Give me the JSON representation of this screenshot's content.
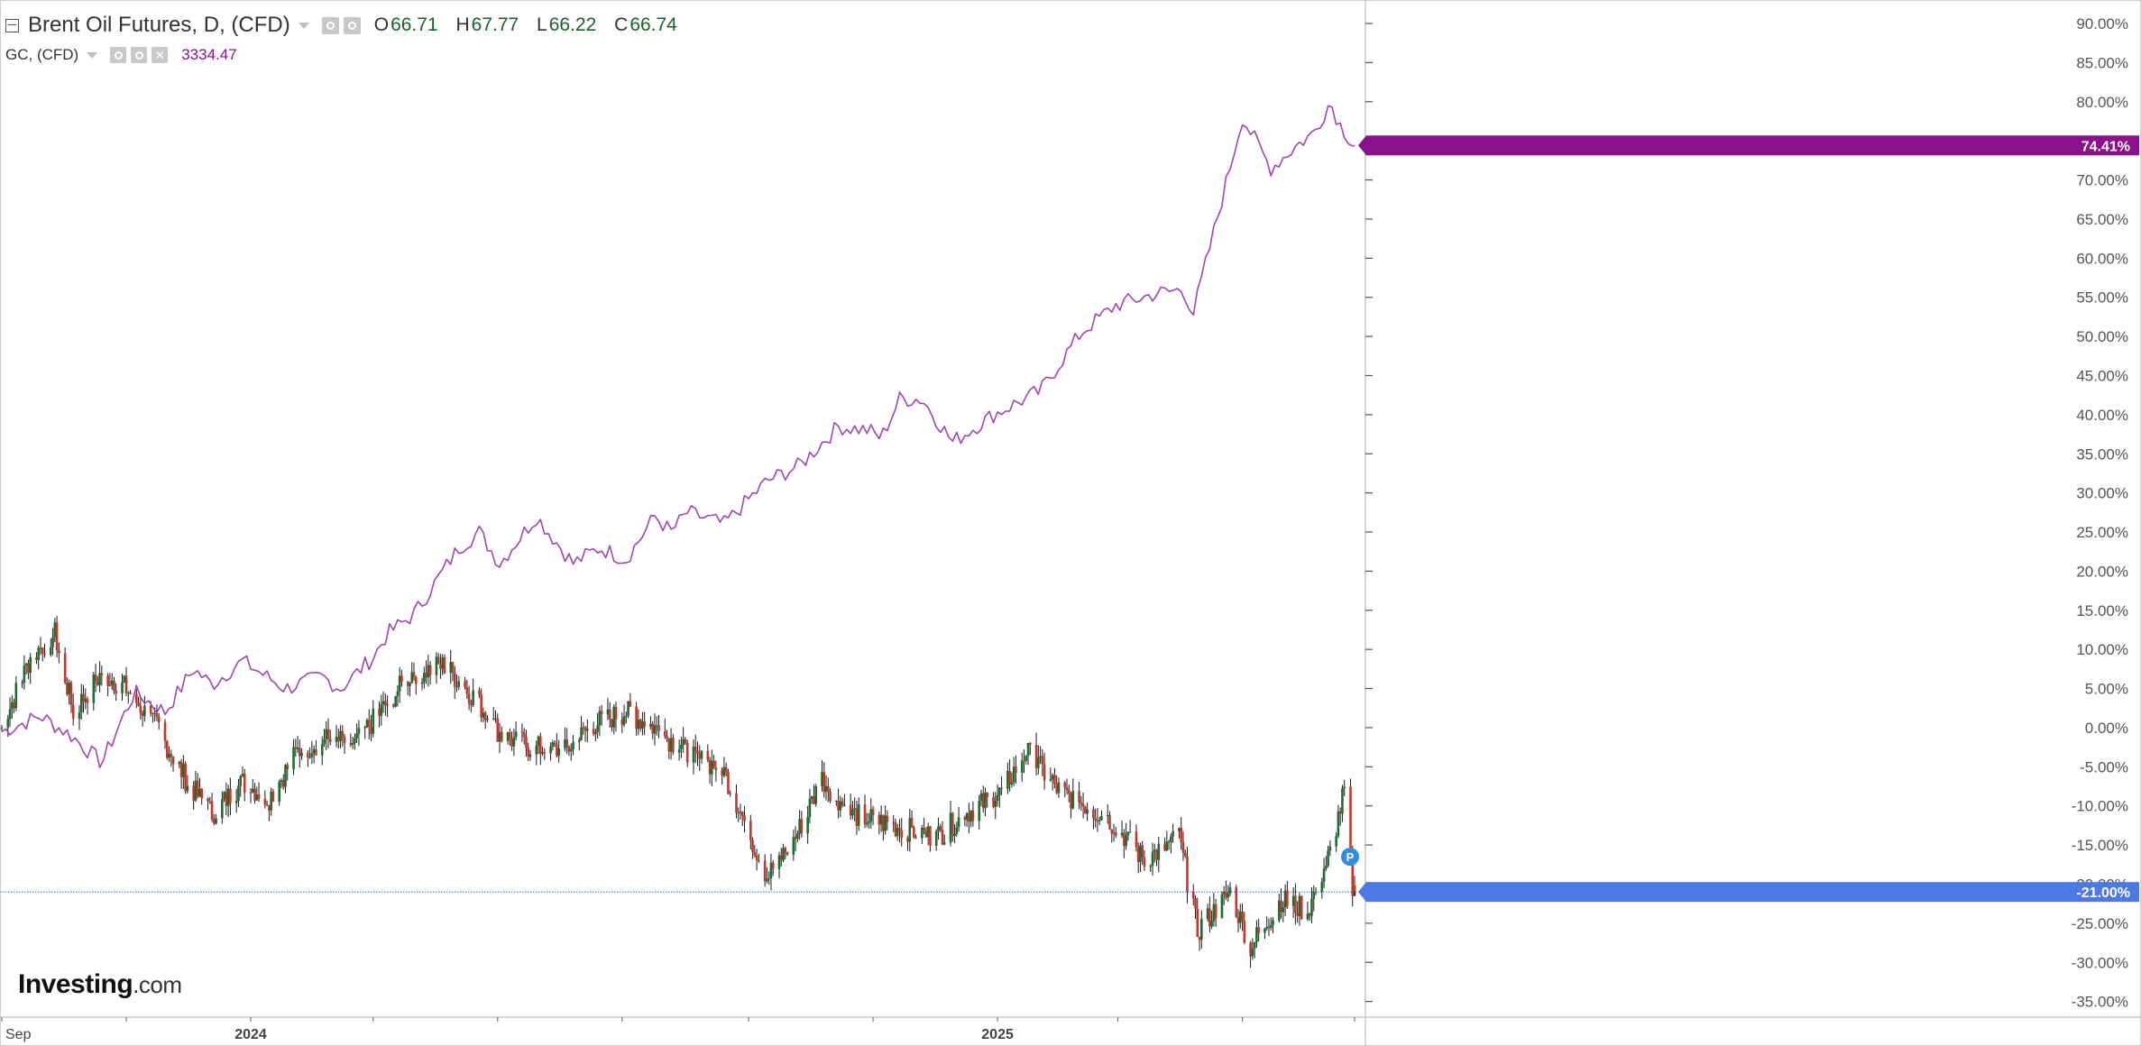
{
  "legend": {
    "main_title": "Brent Oil Futures, D, (CFD)",
    "ohlc": [
      {
        "key": "O",
        "value": "66.71"
      },
      {
        "key": "H",
        "value": "67.77"
      },
      {
        "key": "L",
        "value": "66.22"
      },
      {
        "key": "C",
        "value": "66.74"
      }
    ],
    "compare_title": "GC, (CFD)",
    "compare_value": "3334.47"
  },
  "logo": {
    "name": "Investing",
    "suffix": ".com"
  },
  "colors": {
    "gold_line": "#9e47b0",
    "gold_badge": "#8b108b",
    "up_candle": "#1f6b30",
    "down_candle": "#c0392b",
    "current_line": "#6c8fe8",
    "current_badge": "#4d79e6",
    "alert_marker": "#2f8de4"
  },
  "chart_data": {
    "type": "line",
    "y_axis": {
      "ylim": [
        -37,
        93
      ],
      "unit": "%",
      "tick_values": [
        90,
        85,
        80,
        75,
        70,
        65,
        60,
        55,
        50,
        45,
        40,
        35,
        30,
        25,
        20,
        15,
        10,
        5,
        0,
        -5,
        -10,
        -15,
        -20,
        -25,
        -30,
        -35
      ],
      "tick_labels": [
        "90.00%",
        "85.00%",
        "80.00%",
        "75.00%",
        "70.00%",
        "65.00%",
        "60.00%",
        "55.00%",
        "50.00%",
        "45.00%",
        "40.00%",
        "35.00%",
        "30.00%",
        "25.00%",
        "20.00%",
        "15.00%",
        "10.00%",
        "5.00%",
        "0.00%",
        "-5.00%",
        "-10.00%",
        "-15.00%",
        "-20.00%",
        "-25.00%",
        "-30.00%",
        "-35.00%"
      ]
    },
    "x_axis": {
      "xlim": [
        "2023-09-01",
        "2025-06-25"
      ],
      "labels": [
        {
          "date": "2023-09-01",
          "text": "Sep"
        },
        {
          "date": "2024-01-01",
          "text": "2024"
        },
        {
          "date": "2025-01-01",
          "text": "2025"
        }
      ],
      "ticks": [
        "2023-09-01",
        "2023-11-01",
        "2024-01-01",
        "2024-03-01",
        "2024-05-01",
        "2024-07-01",
        "2024-09-01",
        "2024-11-01",
        "2025-01-01",
        "2025-03-01",
        "2025-05-01",
        "2025-06-25"
      ]
    },
    "series": [
      {
        "name": "GC, (CFD)",
        "style": "line",
        "x": [
          "2023-09-01",
          "2023-09-20",
          "2023-10-05",
          "2023-10-20",
          "2023-11-05",
          "2023-11-20",
          "2023-12-04",
          "2023-12-13",
          "2023-12-28",
          "2024-01-18",
          "2024-02-05",
          "2024-02-14",
          "2024-03-01",
          "2024-03-08",
          "2024-03-21",
          "2024-04-12",
          "2024-04-22",
          "2024-05-02",
          "2024-05-20",
          "2024-06-07",
          "2024-06-20",
          "2024-07-03",
          "2024-07-17",
          "2024-07-25",
          "2024-08-02",
          "2024-08-20",
          "2024-09-10",
          "2024-09-26",
          "2024-10-15",
          "2024-10-30",
          "2024-11-05",
          "2024-11-14",
          "2024-11-25",
          "2024-12-10",
          "2024-12-30",
          "2025-01-22",
          "2025-02-11",
          "2025-02-28",
          "2025-03-20",
          "2025-04-02",
          "2025-04-07",
          "2025-04-21",
          "2025-05-01",
          "2025-05-15",
          "2025-05-28",
          "2025-06-05",
          "2025-06-13",
          "2025-06-18",
          "2025-06-25"
        ],
        "values": [
          -0.5,
          1.5,
          -1.0,
          -4.5,
          4.5,
          2.0,
          7.5,
          5.5,
          8.5,
          5.0,
          6.5,
          5.0,
          9.0,
          12.0,
          14.5,
          23.0,
          25.0,
          21.0,
          27.0,
          21.0,
          23.0,
          21.5,
          27.0,
          25.0,
          27.5,
          26.0,
          31.5,
          33.5,
          38.5,
          38.0,
          37.0,
          42.0,
          42.0,
          36.5,
          40.0,
          43.0,
          50.5,
          54.0,
          55.5,
          56.0,
          53.0,
          67.5,
          78.0,
          71.5,
          74.5,
          76.0,
          80.0,
          77.0,
          74.41
        ],
        "last_value_label": "74.41%"
      },
      {
        "name": "Brent Oil Futures, D, (CFD)",
        "style": "candlestick",
        "x": [
          "2023-09-01",
          "2023-09-15",
          "2023-09-27",
          "2023-10-06",
          "2023-10-20",
          "2023-11-01",
          "2023-11-16",
          "2023-12-01",
          "2023-12-13",
          "2023-12-28",
          "2024-01-10",
          "2024-01-24",
          "2024-02-07",
          "2024-02-21",
          "2024-03-06",
          "2024-03-20",
          "2024-04-05",
          "2024-04-19",
          "2024-05-03",
          "2024-05-17",
          "2024-06-03",
          "2024-06-17",
          "2024-07-03",
          "2024-07-17",
          "2024-08-05",
          "2024-08-19",
          "2024-09-10",
          "2024-09-24",
          "2024-10-07",
          "2024-10-21",
          "2024-11-04",
          "2024-11-18",
          "2024-12-02",
          "2024-12-16",
          "2025-01-02",
          "2025-01-15",
          "2025-01-31",
          "2025-02-14",
          "2025-02-28",
          "2025-03-14",
          "2025-03-31",
          "2025-04-09",
          "2025-04-25",
          "2025-05-05",
          "2025-05-20",
          "2025-06-02",
          "2025-06-13",
          "2025-06-20",
          "2025-06-24",
          "2025-06-25"
        ],
        "values": [
          0.0,
          9.0,
          12.0,
          2.0,
          7.0,
          5.0,
          0.0,
          -7.0,
          -11.0,
          -7.0,
          -9.0,
          -3.0,
          -1.5,
          -2.0,
          2.5,
          7.0,
          8.0,
          4.0,
          -1.0,
          -2.5,
          -3.0,
          0.5,
          2.0,
          0.0,
          -4.0,
          -5.0,
          -19.0,
          -14.0,
          -6.5,
          -11.0,
          -12.0,
          -13.0,
          -14.0,
          -11.0,
          -8.5,
          -3.0,
          -8.0,
          -10.0,
          -12.5,
          -17.0,
          -14.0,
          -26.0,
          -21.0,
          -28.0,
          -22.0,
          -23.5,
          -16.0,
          -8.0,
          -20.5,
          -21.0
        ],
        "last_value_label": "-21.00%"
      }
    ],
    "current_price_line": {
      "value": -21.0,
      "label": "-21.00%"
    },
    "alert_marker": {
      "date": "2025-06-25",
      "value": -16.5,
      "label": "P"
    }
  }
}
